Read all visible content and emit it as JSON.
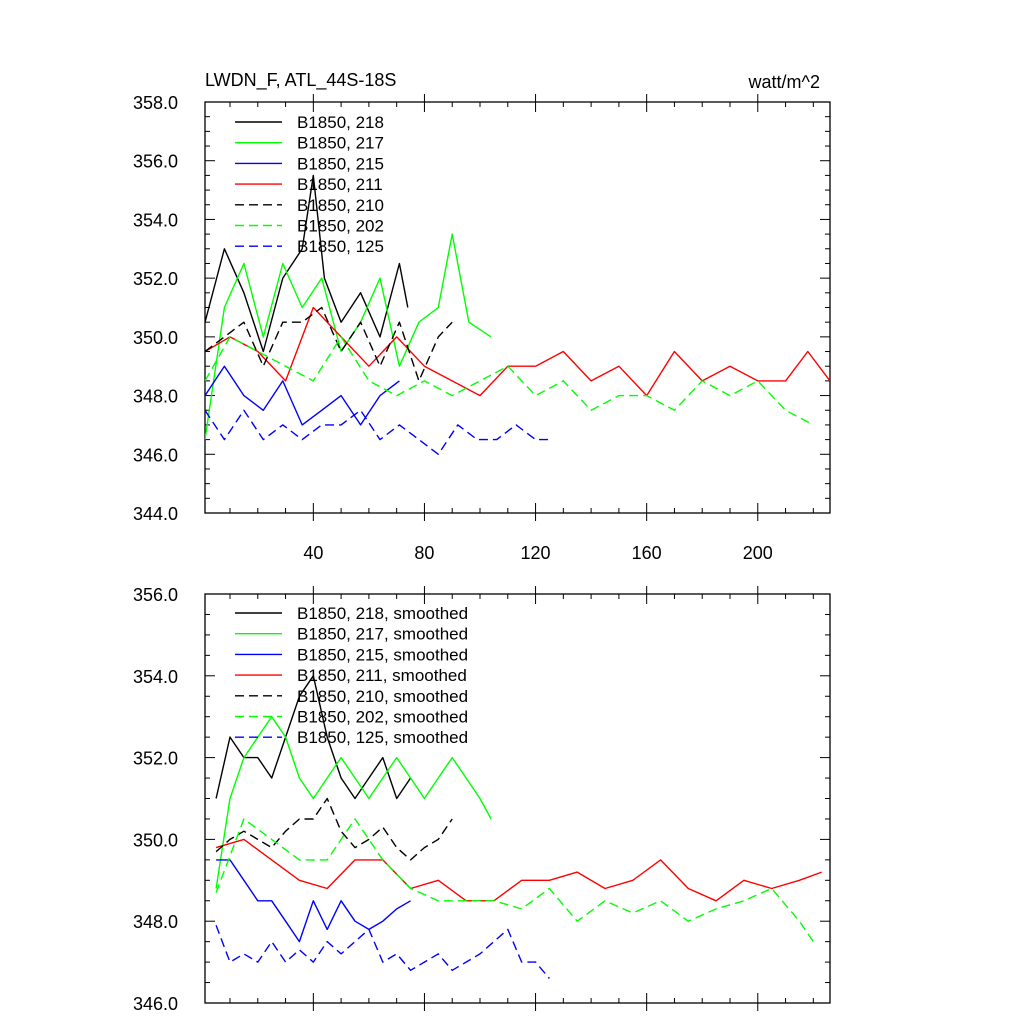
{
  "chart_data": [
    {
      "type": "line",
      "title": "LWDN_F, ATL_44S-18S",
      "units": "watt/m^2",
      "xlabel": "",
      "ylabel": "",
      "xlim": [
        1,
        226
      ],
      "ylim": [
        344.0,
        358.0
      ],
      "xticks": [
        40,
        80,
        120,
        160,
        200
      ],
      "xtick_labels": [
        "40",
        "80",
        "120",
        "160",
        "200"
      ],
      "yticks": [
        344.0,
        346.0,
        348.0,
        350.0,
        352.0,
        354.0,
        356.0,
        358.0
      ],
      "ytick_labels": [
        "344.0",
        "346.0",
        "348.0",
        "350.0",
        "352.0",
        "354.0",
        "356.0",
        "358.0"
      ],
      "legend_position": "top-left",
      "series": [
        {
          "name": "B1850, 218",
          "color": "#000000",
          "dash": "solid",
          "x": [
            1,
            8,
            15,
            22,
            29,
            36,
            40,
            44,
            50,
            57,
            64,
            71,
            74
          ],
          "values": [
            350.5,
            353.0,
            351.5,
            349.5,
            352.0,
            353.0,
            355.5,
            352.0,
            350.5,
            351.5,
            350.0,
            352.5,
            351.0
          ]
        },
        {
          "name": "B1850, 217",
          "color": "#00ff00",
          "dash": "solid",
          "x": [
            1,
            8,
            15,
            22,
            29,
            36,
            43,
            50,
            57,
            64,
            71,
            78,
            85,
            90,
            96,
            104
          ],
          "values": [
            346.5,
            351.0,
            352.5,
            350.0,
            352.5,
            351.0,
            352.0,
            349.5,
            350.5,
            352.0,
            349.0,
            350.5,
            351.0,
            353.5,
            350.5,
            350.0
          ]
        },
        {
          "name": "B1850, 215",
          "color": "#0000ff",
          "dash": "solid",
          "x": [
            1,
            8,
            15,
            22,
            29,
            36,
            43,
            50,
            57,
            64,
            71
          ],
          "values": [
            348.0,
            349.0,
            348.0,
            347.5,
            348.5,
            347.0,
            347.5,
            348.0,
            347.0,
            348.0,
            348.5
          ]
        },
        {
          "name": "B1850, 211",
          "color": "#ff0000",
          "dash": "solid",
          "x": [
            1,
            10,
            20,
            30,
            40,
            50,
            60,
            70,
            80,
            90,
            100,
            110,
            120,
            130,
            140,
            150,
            160,
            170,
            180,
            190,
            200,
            210,
            218,
            226
          ],
          "values": [
            349.5,
            350.0,
            349.5,
            348.5,
            351.0,
            350.0,
            349.0,
            350.0,
            349.0,
            348.5,
            348.0,
            349.0,
            349.0,
            349.5,
            348.5,
            349.0,
            348.0,
            349.5,
            348.5,
            349.0,
            348.5,
            348.5,
            349.5,
            348.5
          ]
        },
        {
          "name": "B1850, 210",
          "color": "#000000",
          "dash": "dashed",
          "x": [
            1,
            8,
            15,
            22,
            29,
            36,
            43,
            50,
            57,
            64,
            71,
            78,
            85,
            90
          ],
          "values": [
            349.5,
            350.0,
            350.5,
            349.0,
            350.5,
            350.5,
            351.0,
            349.5,
            350.5,
            349.0,
            350.5,
            348.5,
            350.0,
            350.5
          ]
        },
        {
          "name": "B1850, 202",
          "color": "#00ff00",
          "dash": "dashed",
          "x": [
            1,
            10,
            20,
            30,
            40,
            50,
            60,
            70,
            80,
            90,
            100,
            110,
            120,
            130,
            140,
            150,
            160,
            170,
            180,
            190,
            200,
            210,
            220
          ],
          "values": [
            348.5,
            350.0,
            349.5,
            349.0,
            348.5,
            350.0,
            348.5,
            348.0,
            348.5,
            348.0,
            348.5,
            349.0,
            348.0,
            348.5,
            347.5,
            348.0,
            348.0,
            347.5,
            348.5,
            348.0,
            348.5,
            347.5,
            347.0
          ]
        },
        {
          "name": "B1850, 125",
          "color": "#0000ff",
          "dash": "dashed",
          "x": [
            1,
            8,
            15,
            22,
            29,
            36,
            43,
            50,
            57,
            64,
            71,
            78,
            85,
            92,
            99,
            106,
            113,
            120,
            125
          ],
          "values": [
            347.5,
            346.5,
            347.5,
            346.5,
            347.0,
            346.5,
            347.0,
            347.0,
            347.5,
            346.5,
            347.0,
            346.5,
            346.0,
            347.0,
            346.5,
            346.5,
            347.0,
            346.5,
            346.5
          ]
        }
      ]
    },
    {
      "type": "line",
      "title": "",
      "xlabel": "",
      "ylabel": "",
      "xlim": [
        1,
        226
      ],
      "ylim": [
        346.0,
        356.0
      ],
      "xticks": [
        40,
        80,
        120,
        160,
        200
      ],
      "xtick_labels": [],
      "yticks": [
        346.0,
        348.0,
        350.0,
        352.0,
        354.0,
        356.0
      ],
      "ytick_labels": [
        "346.0",
        "348.0",
        "350.0",
        "352.0",
        "354.0",
        "356.0"
      ],
      "legend_position": "top-left",
      "series": [
        {
          "name": "B1850, 218, smoothed",
          "color": "#000000",
          "dash": "solid",
          "x": [
            5,
            10,
            15,
            20,
            25,
            30,
            35,
            40,
            45,
            50,
            55,
            60,
            65,
            70,
            75
          ],
          "values": [
            351.0,
            352.5,
            352.0,
            352.0,
            351.5,
            352.5,
            353.5,
            354.0,
            352.5,
            351.5,
            351.0,
            351.5,
            352.0,
            351.0,
            351.5
          ]
        },
        {
          "name": "B1850, 217, smoothed",
          "color": "#00ff00",
          "dash": "solid",
          "x": [
            5,
            10,
            15,
            20,
            25,
            30,
            35,
            40,
            45,
            50,
            55,
            60,
            65,
            70,
            75,
            80,
            85,
            90,
            95,
            100,
            104
          ],
          "values": [
            348.8,
            351.0,
            352.0,
            352.5,
            353.0,
            352.5,
            351.5,
            351.0,
            351.5,
            352.0,
            351.5,
            351.0,
            351.5,
            352.0,
            351.5,
            351.0,
            351.5,
            352.0,
            351.5,
            351.0,
            350.5
          ]
        },
        {
          "name": "B1850, 215, smoothed",
          "color": "#0000ff",
          "dash": "solid",
          "x": [
            5,
            10,
            15,
            20,
            25,
            30,
            35,
            40,
            45,
            50,
            55,
            60,
            65,
            70,
            75
          ],
          "values": [
            349.5,
            349.5,
            349.0,
            348.5,
            348.5,
            348.0,
            347.5,
            348.5,
            347.8,
            348.5,
            348.0,
            347.8,
            348.0,
            348.3,
            348.5
          ]
        },
        {
          "name": "B1850, 211, smoothed",
          "color": "#ff0000",
          "dash": "solid",
          "x": [
            5,
            15,
            25,
            35,
            45,
            55,
            65,
            75,
            85,
            95,
            105,
            115,
            125,
            135,
            145,
            155,
            165,
            175,
            185,
            195,
            205,
            215,
            223
          ],
          "values": [
            349.8,
            350.0,
            349.5,
            349.0,
            348.8,
            349.5,
            349.5,
            348.8,
            349.0,
            348.5,
            348.5,
            349.0,
            349.0,
            349.2,
            348.8,
            349.0,
            349.5,
            348.8,
            348.5,
            349.0,
            348.8,
            349.0,
            349.2
          ]
        },
        {
          "name": "B1850, 210, smoothed",
          "color": "#000000",
          "dash": "dashed",
          "x": [
            5,
            10,
            15,
            20,
            25,
            30,
            35,
            40,
            45,
            50,
            55,
            60,
            65,
            70,
            75,
            80,
            85,
            90
          ],
          "values": [
            349.7,
            350.0,
            350.2,
            350.0,
            349.8,
            350.2,
            350.5,
            350.5,
            351.0,
            350.2,
            349.8,
            350.0,
            350.3,
            349.8,
            349.5,
            349.8,
            350.0,
            350.5
          ]
        },
        {
          "name": "B1850, 202, smoothed",
          "color": "#00ff00",
          "dash": "dashed",
          "x": [
            5,
            15,
            25,
            35,
            45,
            55,
            65,
            75,
            85,
            95,
            105,
            115,
            125,
            135,
            145,
            155,
            165,
            175,
            185,
            195,
            205,
            215,
            220
          ],
          "values": [
            348.7,
            350.5,
            350.0,
            349.5,
            349.5,
            350.5,
            349.5,
            348.8,
            348.5,
            348.5,
            348.5,
            348.3,
            348.8,
            348.0,
            348.5,
            348.2,
            348.5,
            348.0,
            348.3,
            348.5,
            348.8,
            348.0,
            347.5
          ]
        },
        {
          "name": "B1850, 125, smoothed",
          "color": "#0000ff",
          "dash": "dashed",
          "x": [
            5,
            10,
            15,
            20,
            25,
            30,
            35,
            40,
            45,
            50,
            55,
            60,
            65,
            70,
            75,
            80,
            85,
            90,
            95,
            100,
            105,
            110,
            115,
            120,
            125
          ],
          "values": [
            347.9,
            347.0,
            347.2,
            347.0,
            347.5,
            347.0,
            347.3,
            347.0,
            347.5,
            347.2,
            347.5,
            347.8,
            347.0,
            347.2,
            346.8,
            347.0,
            347.2,
            346.8,
            347.0,
            347.2,
            347.5,
            347.8,
            347.0,
            347.0,
            346.6
          ]
        }
      ]
    }
  ]
}
